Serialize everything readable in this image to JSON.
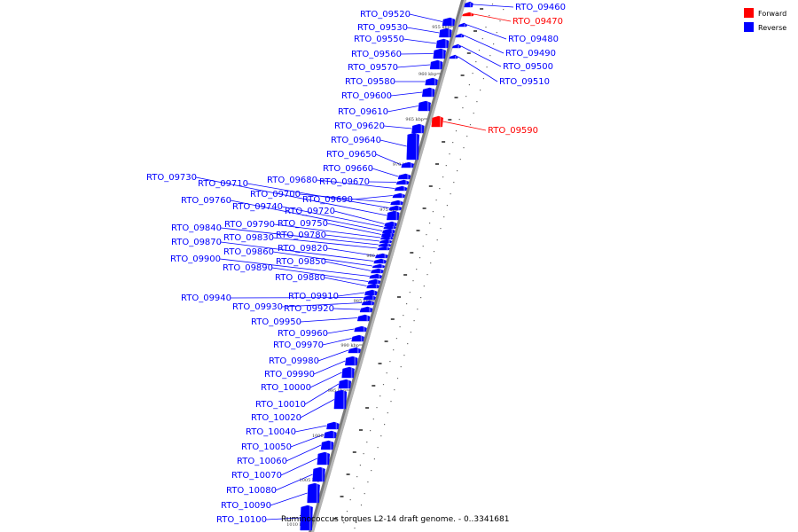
{
  "caption": "Ruminococcus torques L2-14 draft genome. - 0..3341681",
  "legend": [
    {
      "label": "Forward",
      "color": "#ff0000"
    },
    {
      "label": "Reverse",
      "color": "#0000ff"
    }
  ],
  "colors": {
    "forward": "#ff0000",
    "reverse": "#0000ff",
    "backbone": "#808080"
  },
  "ticks": [
    "955 kbp",
    "960 kbp",
    "965 kbp",
    "970 kbp",
    "975 kbp",
    "980 kbp",
    "985 kbp",
    "990 kbp",
    "995 kbp",
    "1000 kbp",
    "1005 kbp",
    "1010 kbp"
  ],
  "genes": [
    {
      "id": "RTO_09460",
      "strand": "reverse"
    },
    {
      "id": "RTO_09470",
      "strand": "forward"
    },
    {
      "id": "RTO_09480",
      "strand": "reverse"
    },
    {
      "id": "RTO_09490",
      "strand": "reverse"
    },
    {
      "id": "RTO_09500",
      "strand": "reverse"
    },
    {
      "id": "RTO_09510",
      "strand": "reverse"
    },
    {
      "id": "RTO_09590",
      "strand": "forward"
    },
    {
      "id": "RTO_09520",
      "strand": "reverse"
    },
    {
      "id": "RTO_09530",
      "strand": "reverse"
    },
    {
      "id": "RTO_09550",
      "strand": "reverse"
    },
    {
      "id": "RTO_09560",
      "strand": "reverse"
    },
    {
      "id": "RTO_09570",
      "strand": "reverse"
    },
    {
      "id": "RTO_09580",
      "strand": "reverse"
    },
    {
      "id": "RTO_09600",
      "strand": "reverse"
    },
    {
      "id": "RTO_09610",
      "strand": "reverse"
    },
    {
      "id": "RTO_09620",
      "strand": "reverse"
    },
    {
      "id": "RTO_09640",
      "strand": "reverse"
    },
    {
      "id": "RTO_09650",
      "strand": "reverse"
    },
    {
      "id": "RTO_09660",
      "strand": "reverse"
    },
    {
      "id": "RTO_09670",
      "strand": "reverse"
    },
    {
      "id": "RTO_09680",
      "strand": "reverse"
    },
    {
      "id": "RTO_09690",
      "strand": "reverse"
    },
    {
      "id": "RTO_09700",
      "strand": "reverse"
    },
    {
      "id": "RTO_09710",
      "strand": "reverse"
    },
    {
      "id": "RTO_09730",
      "strand": "reverse"
    },
    {
      "id": "RTO_09720",
      "strand": "reverse"
    },
    {
      "id": "RTO_09740",
      "strand": "reverse"
    },
    {
      "id": "RTO_09760",
      "strand": "reverse"
    },
    {
      "id": "RTO_09750",
      "strand": "reverse"
    },
    {
      "id": "RTO_09790",
      "strand": "reverse"
    },
    {
      "id": "RTO_09780",
      "strand": "reverse"
    },
    {
      "id": "RTO_09840",
      "strand": "reverse"
    },
    {
      "id": "RTO_09830",
      "strand": "reverse"
    },
    {
      "id": "RTO_09820",
      "strand": "reverse"
    },
    {
      "id": "RTO_09870",
      "strand": "reverse"
    },
    {
      "id": "RTO_09860",
      "strand": "reverse"
    },
    {
      "id": "RTO_09850",
      "strand": "reverse"
    },
    {
      "id": "RTO_09900",
      "strand": "reverse"
    },
    {
      "id": "RTO_09890",
      "strand": "reverse"
    },
    {
      "id": "RTO_09880",
      "strand": "reverse"
    },
    {
      "id": "RTO_09910",
      "strand": "reverse"
    },
    {
      "id": "RTO_09940",
      "strand": "reverse"
    },
    {
      "id": "RTO_09930",
      "strand": "reverse"
    },
    {
      "id": "RTO_09920",
      "strand": "reverse"
    },
    {
      "id": "RTO_09950",
      "strand": "reverse"
    },
    {
      "id": "RTO_09960",
      "strand": "reverse"
    },
    {
      "id": "RTO_09970",
      "strand": "reverse"
    },
    {
      "id": "RTO_09980",
      "strand": "reverse"
    },
    {
      "id": "RTO_09990",
      "strand": "reverse"
    },
    {
      "id": "RTO_10000",
      "strand": "reverse"
    },
    {
      "id": "RTO_10010",
      "strand": "reverse"
    },
    {
      "id": "RTO_10020",
      "strand": "reverse"
    },
    {
      "id": "RTO_10040",
      "strand": "reverse"
    },
    {
      "id": "RTO_10050",
      "strand": "reverse"
    },
    {
      "id": "RTO_10060",
      "strand": "reverse"
    },
    {
      "id": "RTO_10070",
      "strand": "reverse"
    },
    {
      "id": "RTO_10080",
      "strand": "reverse"
    },
    {
      "id": "RTO_10090",
      "strand": "reverse"
    },
    {
      "id": "RTO_10100",
      "strand": "reverse"
    }
  ]
}
